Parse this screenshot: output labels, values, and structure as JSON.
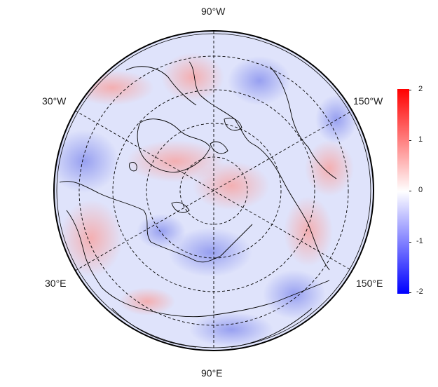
{
  "map": {
    "projection": "north-polar-stereographic",
    "longitude_labels": {
      "top": "90°W",
      "upper_left": "30°W",
      "upper_right": "150°W",
      "lower_left": "30°E",
      "lower_right": "150°E",
      "bottom": "90°E"
    },
    "colorbar": {
      "ticks": [
        "2",
        "1",
        "0",
        "-1",
        "-2"
      ],
      "min": -2,
      "max": 2,
      "colors": {
        "high": "#ff0000",
        "mid": "#ffffff",
        "low": "#0000ff"
      }
    },
    "ocean_tint": "#dde2fb"
  }
}
